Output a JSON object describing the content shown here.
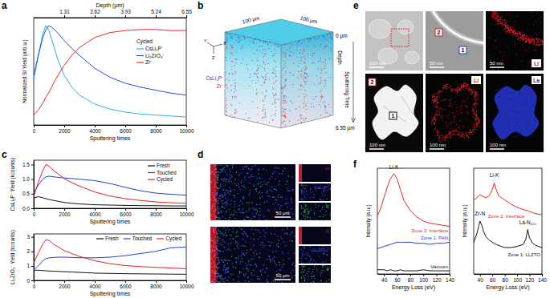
{
  "panel_labels": [
    "a",
    "b",
    "c",
    "d",
    "e",
    "f"
  ],
  "chart_data": [
    {
      "type": "line",
      "x_label": "Sputtering times",
      "y_label": "Normalized SI Yield (arb.u.)",
      "x2_label": "Depth (μm)",
      "x": [
        0,
        300,
        600,
        800,
        1000,
        1300,
        1600,
        2000,
        2500,
        3000,
        4000,
        5000,
        6000,
        7000,
        8000,
        9000,
        10000
      ],
      "xlim": [
        0,
        10000
      ],
      "xticks": [
        0,
        2000,
        4000,
        6000,
        8000,
        10000
      ],
      "x2lim": [
        0,
        6.55
      ],
      "x2ticks": [
        1.31,
        2.62,
        3.93,
        5.24,
        6.55
      ],
      "ylim": [
        0,
        1.08
      ],
      "tick_labels": "x",
      "legend": "upper right",
      "legend_title": "Cycled",
      "series": [
        {
          "name": "CsLi₂P⁻",
          "color": "#2aaee6",
          "values": [
            0.45,
            0.7,
            0.92,
            1.0,
            0.95,
            0.8,
            0.65,
            0.5,
            0.38,
            0.3,
            0.21,
            0.16,
            0.13,
            0.11,
            0.1,
            0.09,
            0.08
          ]
        },
        {
          "name": "Li₂ZrO₃⁻",
          "color": "#2b4bd6",
          "values": [
            0.5,
            0.7,
            0.88,
            0.96,
            1.0,
            0.97,
            0.92,
            0.85,
            0.77,
            0.7,
            0.57,
            0.48,
            0.42,
            0.38,
            0.35,
            0.32,
            0.3
          ]
        },
        {
          "name": "Zr⁻",
          "color": "#e8262a",
          "values": [
            0.1,
            0.15,
            0.22,
            0.28,
            0.33,
            0.42,
            0.5,
            0.6,
            0.7,
            0.78,
            0.88,
            0.93,
            0.95,
            0.96,
            0.96,
            0.95,
            0.95
          ]
        }
      ]
    },
    {
      "type": "line",
      "x_label": "Sputtering times",
      "y_label": "CsLi₂P⁻ Yield (kcounts)",
      "x": [
        0,
        300,
        600,
        800,
        1000,
        1300,
        1600,
        2000,
        2500,
        3000,
        4000,
        5000,
        6000,
        7000,
        8000,
        9000,
        10000
      ],
      "xlim": [
        0,
        10000
      ],
      "xticks": [
        0,
        2000,
        4000,
        6000,
        8000,
        10000
      ],
      "ylim": [
        0,
        1.65
      ],
      "yticks": [
        {
          "value": 0,
          "label": "0.0"
        },
        {
          "value": 0.5,
          "label": "0.5"
        },
        {
          "value": 1,
          "label": "1.0"
        },
        {
          "value": 1.5,
          "label": "1.5"
        }
      ],
      "legend": "upper right",
      "series": [
        {
          "name": "Fresh",
          "color": "#111111",
          "values": [
            0.35,
            0.4,
            0.36,
            0.33,
            0.3,
            0.27,
            0.24,
            0.2,
            0.17,
            0.15,
            0.12,
            0.11,
            0.1,
            0.09,
            0.09,
            0.08,
            0.08
          ]
        },
        {
          "name": "Touched",
          "color": "#2441d1",
          "values": [
            0.5,
            0.8,
            1.0,
            1.08,
            1.1,
            1.08,
            1.06,
            1.04,
            1.02,
            1.0,
            0.95,
            0.85,
            0.72,
            0.6,
            0.52,
            0.48,
            0.45
          ]
        },
        {
          "name": "Cycled",
          "color": "#e4202a",
          "values": [
            0.4,
            0.9,
            1.3,
            1.5,
            1.45,
            1.3,
            1.18,
            1.02,
            0.88,
            0.76,
            0.56,
            0.42,
            0.33,
            0.27,
            0.22,
            0.19,
            0.17
          ]
        }
      ]
    },
    {
      "type": "line",
      "x_label": "Sputtering times",
      "y_label": "Li₂ZrO₃⁻ Yield (kcounts)",
      "x": [
        0,
        300,
        600,
        800,
        1000,
        1300,
        1600,
        2000,
        2500,
        3000,
        4000,
        5000,
        6000,
        7000,
        8000,
        9000,
        10000
      ],
      "xlim": [
        0,
        10000
      ],
      "xticks": [
        0,
        2000,
        4000,
        6000,
        8000,
        10000
      ],
      "ylim": [
        0,
        3.2
      ],
      "yticks": [
        0,
        1,
        2,
        3
      ],
      "legend": "upper right",
      "series": [
        {
          "name": "Fresh",
          "color": "#111111",
          "values": [
            0.7,
            0.7,
            0.68,
            0.66,
            0.65,
            0.63,
            0.62,
            0.6,
            0.58,
            0.55,
            0.5,
            0.48,
            0.46,
            0.45,
            0.44,
            0.43,
            0.42
          ]
        },
        {
          "name": "Touched",
          "color": "#2441d1",
          "values": [
            0.7,
            1.0,
            1.35,
            1.5,
            1.55,
            1.58,
            1.6,
            1.6,
            1.58,
            1.56,
            1.55,
            1.6,
            1.7,
            1.85,
            2.0,
            2.25,
            2.3
          ]
        },
        {
          "name": "Cycled",
          "color": "#e4202a",
          "values": [
            1.2,
            1.9,
            2.5,
            2.8,
            2.75,
            2.5,
            2.3,
            2.05,
            1.85,
            1.65,
            1.35,
            1.15,
            1.02,
            0.95,
            0.9,
            0.85,
            0.8
          ]
        }
      ]
    },
    {
      "type": "line",
      "x_label": "Energy Loss (eV)",
      "y_label": "Intensity (a.u.)",
      "x": [
        30,
        35,
        40,
        45,
        50,
        55,
        60,
        65,
        70,
        80,
        90,
        100,
        110,
        120,
        130,
        140
      ],
      "xlim": [
        30,
        140
      ],
      "xticks": [
        40,
        60,
        80,
        100,
        120,
        140
      ],
      "ylim": [
        0,
        1
      ],
      "tick_labels": "x",
      "annotations": [
        {
          "text": "Li-K",
          "x": 55,
          "y": 0.99
        }
      ],
      "series": [
        {
          "name": "Zone 2: Interface",
          "color": "#e8262a",
          "values": [
            0.55,
            0.62,
            0.72,
            0.82,
            0.9,
            0.95,
            0.9,
            0.8,
            0.7,
            0.6,
            0.54,
            0.5,
            0.48,
            0.47,
            0.46,
            0.45
          ]
        },
        {
          "name": "Zone 1: PAN",
          "color": "#2441d1",
          "values": [
            0.24,
            0.25,
            0.26,
            0.27,
            0.28,
            0.29,
            0.3,
            0.3,
            0.3,
            0.3,
            0.29,
            0.29,
            0.28,
            0.29,
            0.29,
            0.3
          ]
        },
        {
          "name": "Vacuum",
          "color": "#111111",
          "values": [
            0.04,
            0.04,
            0.04,
            0.03,
            0.04,
            0.03,
            0.03,
            0.04,
            0.03,
            0.03,
            0.03,
            0.04,
            0.03,
            0.03,
            0.03,
            0.03
          ]
        }
      ]
    },
    {
      "type": "line",
      "x_label": "Energy Loss (eV)",
      "y_label": "Intensity (a.u.)",
      "x": [
        30,
        35,
        38,
        40,
        43,
        46,
        50,
        55,
        60,
        63,
        66,
        70,
        80,
        90,
        100,
        110,
        114,
        117,
        120,
        125,
        130,
        140
      ],
      "xlim": [
        30,
        140
      ],
      "xticks": [
        40,
        60,
        80,
        100,
        120,
        140
      ],
      "ylim": [
        0,
        1
      ],
      "tick_labels": "x",
      "annotations": [
        {
          "text": "Zr-N",
          "x": 40,
          "y": 0.55
        },
        {
          "text": "Li-K",
          "x": 63,
          "y": 0.92
        },
        {
          "text": "La-N₄,₅",
          "x": 117,
          "y": 0.47
        }
      ],
      "series": [
        {
          "name": "Zone 2: Interface",
          "color": "#e8262a",
          "values": [
            0.7,
            0.72,
            0.74,
            0.75,
            0.74,
            0.73,
            0.72,
            0.74,
            0.8,
            0.86,
            0.8,
            0.74,
            0.7,
            0.66,
            0.63,
            0.61,
            0.6,
            0.6,
            0.59,
            0.58,
            0.57,
            0.56
          ]
        },
        {
          "name": "Zone 1: LLZTO",
          "color": "#111111",
          "values": [
            0.3,
            0.38,
            0.45,
            0.5,
            0.46,
            0.4,
            0.35,
            0.32,
            0.3,
            0.29,
            0.28,
            0.27,
            0.25,
            0.25,
            0.26,
            0.28,
            0.33,
            0.42,
            0.34,
            0.29,
            0.27,
            0.25
          ]
        }
      ]
    }
  ],
  "images": {
    "b": {
      "axes": [
        "Y",
        "X",
        "Z"
      ],
      "edge_labels": [
        "100 μm",
        "100 μm"
      ],
      "depth_labels": [
        "0 μm",
        "6.55 μm"
      ],
      "depth_title": "Depth",
      "time_title": "Sputtering Time",
      "species": [
        "CsLi₂P⁻",
        "Zr⁻"
      ]
    },
    "d": [
      {
        "channels": [
          "Li",
          "CsLi₂P⁻",
          "P"
        ],
        "scale_bar": "50 μm"
      },
      {
        "channels": [
          "Li",
          "Li₂ZrO₃⁻",
          "P"
        ],
        "scale_bar": "50 μm"
      }
    ],
    "e": [
      {
        "scale_bar": "100 nm"
      },
      {
        "scale_bar": "50 nm",
        "markers": [
          "2",
          "1"
        ]
      },
      {
        "scale_bar": "50 nm",
        "channel": "Li"
      },
      {
        "scale_bar": "100 nm",
        "markers": [
          "2",
          "1"
        ]
      },
      {
        "scale_bar": "100 nm",
        "channel": "Li"
      },
      {
        "scale_bar": "100 nm",
        "channel": "La"
      }
    ]
  }
}
